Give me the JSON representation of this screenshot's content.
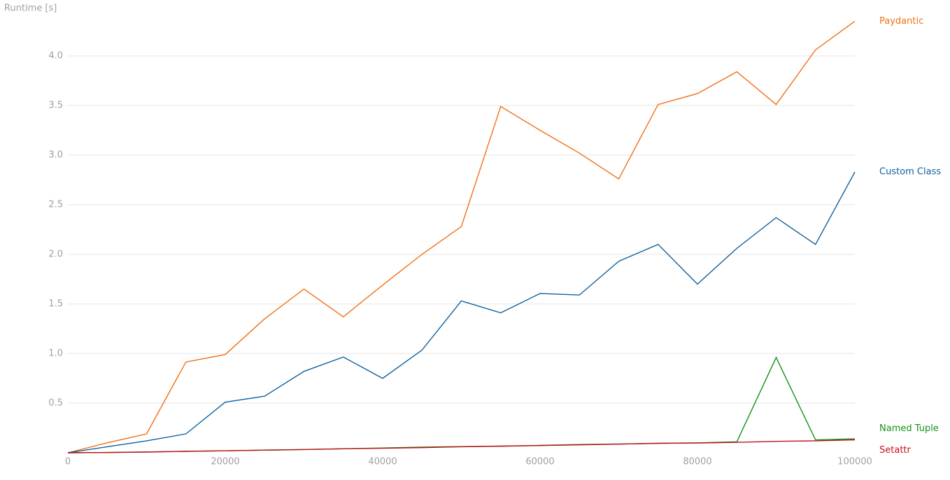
{
  "chart_data": {
    "type": "line",
    "y_label": "Runtime [s]",
    "x": [
      0,
      5000,
      10000,
      15000,
      20000,
      25000,
      30000,
      35000,
      40000,
      45000,
      50000,
      55000,
      60000,
      65000,
      70000,
      75000,
      80000,
      85000,
      90000,
      95000,
      100000
    ],
    "series": [
      {
        "name": "Paydantic",
        "color": "#f07015",
        "values": [
          0,
          0.1,
          0.19,
          0.915,
          0.99,
          1.35,
          1.65,
          1.37,
          1.69,
          2.0,
          2.28,
          3.49,
          3.25,
          3.02,
          2.76,
          3.51,
          3.62,
          3.84,
          3.51,
          4.06,
          4.35
        ]
      },
      {
        "name": "Custom Class",
        "color": "#10619e",
        "values": [
          0,
          0.06,
          0.12,
          0.19,
          0.51,
          0.57,
          0.82,
          0.965,
          0.75,
          1.035,
          1.53,
          1.41,
          1.605,
          1.59,
          1.93,
          2.1,
          1.7,
          2.06,
          2.37,
          2.1,
          2.83
        ]
      },
      {
        "name": "Named Tuple",
        "color": "#16901a",
        "values": [
          0,
          0.003,
          0.008,
          0.015,
          0.02,
          0.027,
          0.033,
          0.04,
          0.048,
          0.057,
          0.062,
          0.067,
          0.074,
          0.083,
          0.088,
          0.095,
          0.1,
          0.11,
          0.96,
          0.13,
          0.14
        ]
      },
      {
        "name": "Setattr",
        "color": "#c0121c",
        "values": [
          0,
          0.002,
          0.007,
          0.014,
          0.02,
          0.026,
          0.032,
          0.04,
          0.045,
          0.052,
          0.06,
          0.066,
          0.073,
          0.08,
          0.087,
          0.095,
          0.098,
          0.105,
          0.115,
          0.12,
          0.13
        ]
      }
    ],
    "xlim": [
      0,
      100000
    ],
    "xticks": [
      0,
      20000,
      40000,
      60000,
      80000,
      100000
    ],
    "ylim": [
      0,
      4.4
    ],
    "yticks": [
      0.5,
      {
        "value": 1,
        "label": "1.0"
      },
      1.5,
      {
        "value": 2,
        "label": "2.0"
      },
      2.5,
      {
        "value": 3,
        "label": "3.0"
      },
      3.5,
      {
        "value": 4,
        "label": "4.0"
      }
    ],
    "grid": true
  }
}
